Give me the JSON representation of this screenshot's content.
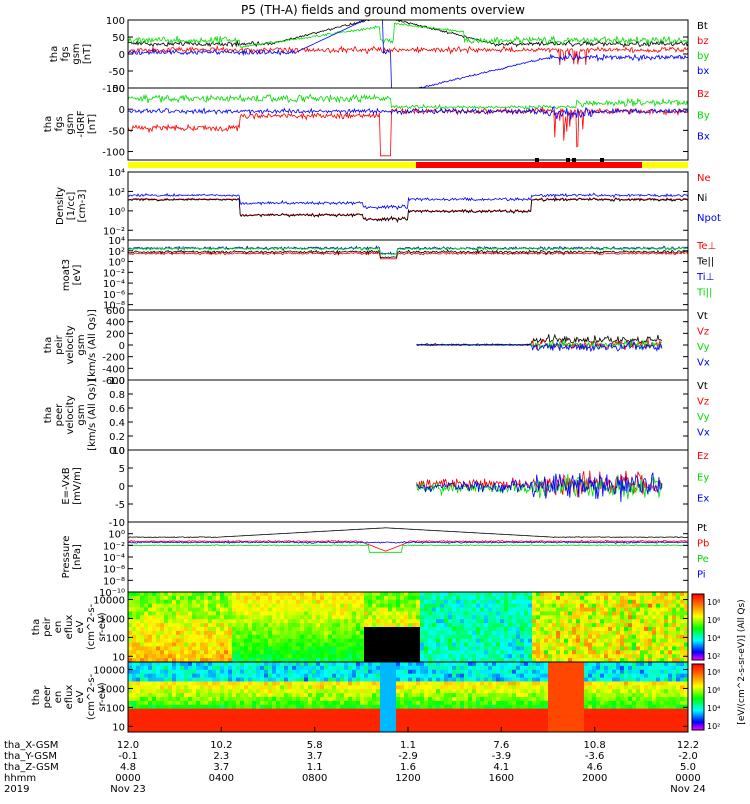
{
  "title": "P5 (TH-A) fields and ground moments overview",
  "colors": {
    "black": "#000000",
    "red": "#ff0000",
    "green": "#00dd00",
    "blue": "#0000ff",
    "yellow": "#ffff00"
  },
  "chart_data": [
    {
      "type": "line",
      "id": "p1",
      "ylabel": [
        "tha",
        "fgs",
        "gsm",
        "[nT]"
      ],
      "ylim": [
        -100,
        100
      ],
      "yticks": [
        "100",
        "50",
        "0",
        "-50",
        "-100"
      ],
      "yscale": "linear",
      "legend": [
        {
          "name": "Bt",
          "color": "#000000"
        },
        {
          "name": "bz",
          "color": "#ff0000"
        },
        {
          "name": "by",
          "color": "#00dd00"
        },
        {
          "name": "bx",
          "color": "#0000ff"
        }
      ]
    },
    {
      "type": "line",
      "id": "p2",
      "ylabel": [
        "tha",
        "fgs",
        "gsm",
        "-IGRF",
        "[nT]"
      ],
      "ylim": [
        -120,
        50
      ],
      "yticks": [
        "50",
        "0",
        "-50",
        "-100"
      ],
      "yscale": "linear",
      "legend": [
        {
          "name": "Bz",
          "color": "#ff0000"
        },
        {
          "name": "By",
          "color": "#00dd00"
        },
        {
          "name": "Bx",
          "color": "#0000ff"
        }
      ]
    },
    {
      "type": "line",
      "id": "p3",
      "ylabel": [
        "Density",
        "[1/cc]",
        "[cm-3]"
      ],
      "ylim": [
        -3,
        4
      ],
      "yscale": "log",
      "yticks": [
        "10⁴",
        "10²",
        "10⁰",
        "10⁻²"
      ],
      "legend": [
        {
          "name": "Ne",
          "color": "#ff0000"
        },
        {
          "name": "Ni",
          "color": "#000000"
        },
        {
          "name": "Npot",
          "color": "#0000ff"
        }
      ]
    },
    {
      "type": "line",
      "id": "p4",
      "ylabel": [
        "moat3",
        "[eV]"
      ],
      "ylim": [
        -9,
        4
      ],
      "yscale": "log",
      "yticks": [
        "10⁴",
        "10²",
        "10⁰",
        "10⁻²",
        "10⁻⁴",
        "10⁻⁶",
        "10⁻⁸"
      ],
      "legend": [
        {
          "name": "Te⊥",
          "color": "#ff0000"
        },
        {
          "name": "Te||",
          "color": "#000000"
        },
        {
          "name": "Ti⊥",
          "color": "#0000ff"
        },
        {
          "name": "Ti||",
          "color": "#00dd00"
        }
      ]
    },
    {
      "type": "line",
      "id": "p5",
      "ylabel": [
        "tha",
        "peir",
        "velocity",
        "gsm",
        "[km/s (All Qs)]"
      ],
      "ylim": [
        -600,
        600
      ],
      "yticks": [
        "600",
        "400",
        "200",
        "0",
        "-200",
        "-400",
        "-600"
      ],
      "yscale": "linear",
      "legend": [
        {
          "name": "Vt",
          "color": "#000000"
        },
        {
          "name": "Vz",
          "color": "#ff0000"
        },
        {
          "name": "Vy",
          "color": "#00dd00"
        },
        {
          "name": "Vx",
          "color": "#0000ff"
        }
      ]
    },
    {
      "type": "line",
      "id": "p6",
      "ylabel": [
        "tha",
        "peer",
        "velocity",
        "gsm",
        "[km/s (All Qs)]"
      ],
      "ylim": [
        0,
        1
      ],
      "yticks": [
        "1.0",
        "0.8",
        "0.6",
        "0.4",
        "0.2",
        "0.0"
      ],
      "yscale": "linear",
      "legend": [
        {
          "name": "Vt",
          "color": "#000000"
        },
        {
          "name": "Vz",
          "color": "#ff0000"
        },
        {
          "name": "Vy",
          "color": "#00dd00"
        },
        {
          "name": "Vx",
          "color": "#0000ff"
        }
      ]
    },
    {
      "type": "line",
      "id": "p7",
      "ylabel": [
        "E=-VxB",
        "[mV/m]"
      ],
      "ylim": [
        -10,
        10
      ],
      "yticks": [
        "10",
        "5",
        "0",
        "-5",
        "-10"
      ],
      "yscale": "linear",
      "legend": [
        {
          "name": "Ez",
          "color": "#ff0000"
        },
        {
          "name": "Ey",
          "color": "#00dd00"
        },
        {
          "name": "Ex",
          "color": "#0000ff"
        }
      ]
    },
    {
      "type": "line",
      "id": "p8",
      "ylabel": [
        "Pressure",
        "[nPa]"
      ],
      "ylim": [
        -10,
        2
      ],
      "yscale": "log",
      "yticks": [
        "10⁰",
        "10⁻²",
        "10⁻⁴",
        "10⁻⁶",
        "10⁻⁸",
        "10⁻¹⁰"
      ],
      "legend": [
        {
          "name": "Pt",
          "color": "#000000"
        },
        {
          "name": "Pb",
          "color": "#ff0000"
        },
        {
          "name": "Pe",
          "color": "#00dd00"
        },
        {
          "name": "Pi",
          "color": "#0000ff"
        }
      ]
    },
    {
      "type": "heatmap",
      "id": "s1",
      "ylabel": [
        "tha",
        "peir",
        "en",
        "eflux",
        "eV",
        "(cm^2-s-",
        "sr-eV)"
      ],
      "ylim": [
        5,
        25000
      ],
      "yscale": "log",
      "yticks": [
        "10000",
        "1000",
        "100",
        "10"
      ]
    },
    {
      "type": "heatmap",
      "id": "s2",
      "ylabel": [
        "tha",
        "peer",
        "en",
        "eflux",
        "eV",
        "(cm^2-s-",
        "sr-eV)"
      ],
      "ylim": [
        5,
        25000
      ],
      "yscale": "log",
      "yticks": [
        "10000",
        "1000",
        "100",
        "10"
      ]
    }
  ],
  "colorbar": {
    "label": "[eV/(cm^2-s-sr-eV)] (All Qs)",
    "ticks": [
      "10⁸",
      "10⁶",
      "10⁴",
      "10²"
    ]
  },
  "time_axis": {
    "rows": [
      {
        "label": "tha_X-GSM",
        "values": [
          "12.0",
          "10.2",
          "5.8",
          "1.1",
          "7.6",
          "10.8",
          "12.2"
        ]
      },
      {
        "label": "tha_Y-GSM",
        "values": [
          "-0.1",
          "2.3",
          "3.7",
          "-2.9",
          "-3.9",
          "-3.6",
          "-2.0"
        ]
      },
      {
        "label": "tha_Z-GSM",
        "values": [
          "4.8",
          "3.7",
          "1.1",
          "1.6",
          "4.1",
          "4.6",
          "5.0"
        ]
      },
      {
        "label": "hhmm",
        "values": [
          "0000",
          "0400",
          "0800",
          "1200",
          "1600",
          "2000",
          "0000"
        ]
      }
    ],
    "year": "2019",
    "date_start": "Nov 23",
    "date_end": "Nov 24"
  }
}
